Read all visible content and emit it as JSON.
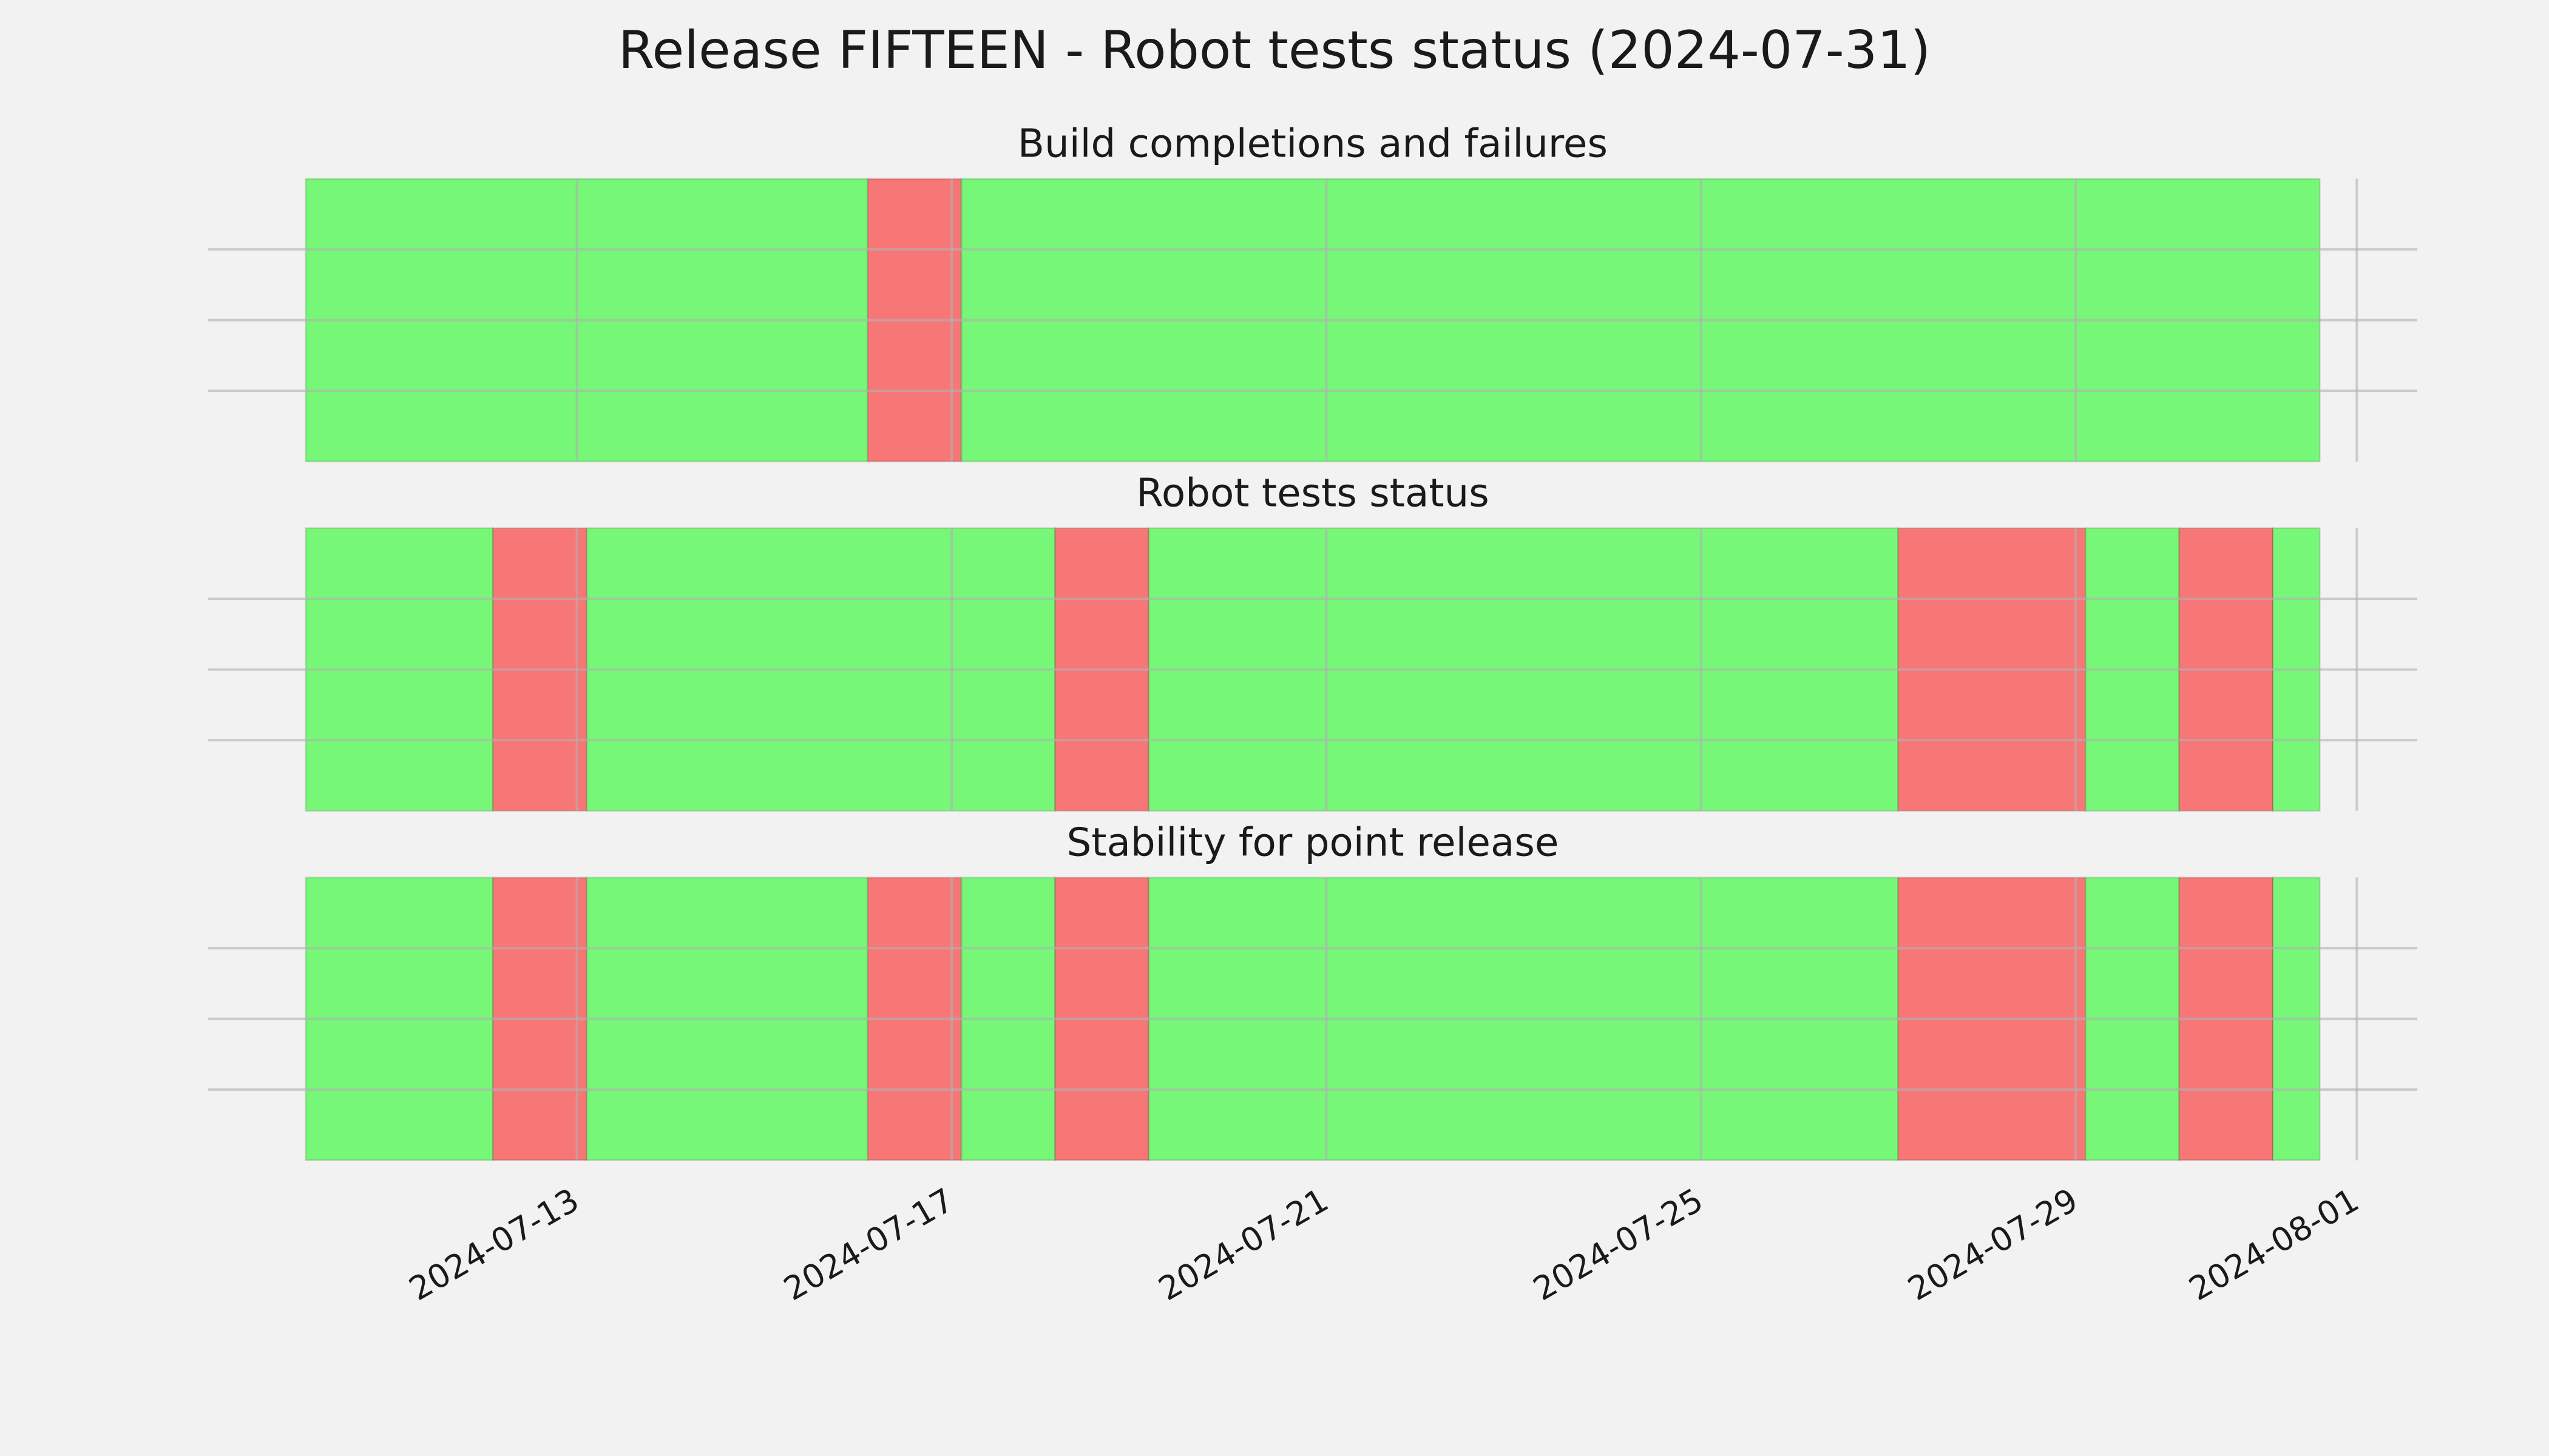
{
  "chart_data": {
    "type": "timeline",
    "title": "Release FIFTEEN - Robot tests status (2024-07-31)",
    "xlim": [
      "2024-07-09T01:30",
      "2024-08-01T15:30"
    ],
    "xticks": [
      "2024-07-13",
      "2024-07-17",
      "2024-07-21",
      "2024-07-25",
      "2024-07-29",
      "2024-08-01"
    ],
    "ylim": [
      0,
      1
    ],
    "yticks": [
      0.25,
      0.5,
      0.75
    ],
    "grid": true,
    "panels": [
      {
        "title": "Build completions and failures",
        "spans": [
          {
            "start": "2024-07-10T02:30",
            "end": "2024-07-16T02:30",
            "color": "#77f777"
          },
          {
            "start": "2024-07-16T02:30",
            "end": "2024-07-17T02:30",
            "color": "#f77777"
          },
          {
            "start": "2024-07-17T02:30",
            "end": "2024-07-31T14:30",
            "color": "#77f777"
          }
        ]
      },
      {
        "title": "Robot tests status",
        "spans": [
          {
            "start": "2024-07-10T02:30",
            "end": "2024-07-12T02:30",
            "color": "#77f777"
          },
          {
            "start": "2024-07-12T02:30",
            "end": "2024-07-13T02:30",
            "color": "#f77777"
          },
          {
            "start": "2024-07-13T02:30",
            "end": "2024-07-18T02:30",
            "color": "#77f777"
          },
          {
            "start": "2024-07-18T02:30",
            "end": "2024-07-19T02:30",
            "color": "#f77777"
          },
          {
            "start": "2024-07-19T02:30",
            "end": "2024-07-27T02:30",
            "color": "#77f777"
          },
          {
            "start": "2024-07-27T02:30",
            "end": "2024-07-29T02:30",
            "color": "#f77777"
          },
          {
            "start": "2024-07-29T02:30",
            "end": "2024-07-30T02:30",
            "color": "#77f777"
          },
          {
            "start": "2024-07-30T02:30",
            "end": "2024-07-31T02:30",
            "color": "#f77777"
          },
          {
            "start": "2024-07-31T02:30",
            "end": "2024-07-31T14:30",
            "color": "#77f777"
          }
        ]
      },
      {
        "title": "Stability for point release",
        "spans": [
          {
            "start": "2024-07-10T02:30",
            "end": "2024-07-12T02:30",
            "color": "#77f777"
          },
          {
            "start": "2024-07-12T02:30",
            "end": "2024-07-13T02:30",
            "color": "#f77777"
          },
          {
            "start": "2024-07-13T02:30",
            "end": "2024-07-16T02:30",
            "color": "#77f777"
          },
          {
            "start": "2024-07-16T02:30",
            "end": "2024-07-17T02:30",
            "color": "#f77777"
          },
          {
            "start": "2024-07-17T02:30",
            "end": "2024-07-18T02:30",
            "color": "#77f777"
          },
          {
            "start": "2024-07-18T02:30",
            "end": "2024-07-19T02:30",
            "color": "#f77777"
          },
          {
            "start": "2024-07-19T02:30",
            "end": "2024-07-27T02:30",
            "color": "#77f777"
          },
          {
            "start": "2024-07-27T02:30",
            "end": "2024-07-29T02:30",
            "color": "#f77777"
          },
          {
            "start": "2024-07-29T02:30",
            "end": "2024-07-30T02:30",
            "color": "#77f777"
          },
          {
            "start": "2024-07-30T02:30",
            "end": "2024-07-31T02:30",
            "color": "#f77777"
          },
          {
            "start": "2024-07-31T02:30",
            "end": "2024-07-31T14:30",
            "color": "#77f777"
          }
        ]
      }
    ]
  }
}
